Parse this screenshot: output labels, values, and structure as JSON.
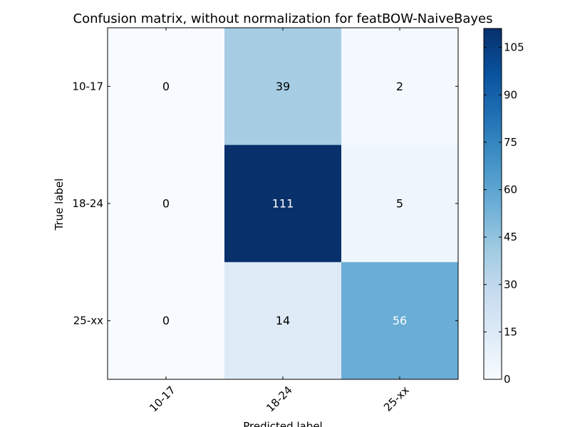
{
  "chart_data": {
    "type": "heatmap",
    "title": "Confusion matrix, without normalization for featBOW-NaiveBayes",
    "xlabel": "Predicted label",
    "ylabel": "True label",
    "x_categories": [
      "10-17",
      "18-24",
      "25-xx"
    ],
    "y_categories": [
      "10-17",
      "18-24",
      "25-xx"
    ],
    "values": [
      [
        0,
        39,
        2
      ],
      [
        0,
        111,
        5
      ],
      [
        0,
        14,
        56
      ]
    ],
    "colormap": "Blues",
    "value_range": [
      0,
      111
    ],
    "colorbar_ticks": [
      0,
      15,
      30,
      45,
      60,
      75,
      90,
      105
    ]
  }
}
